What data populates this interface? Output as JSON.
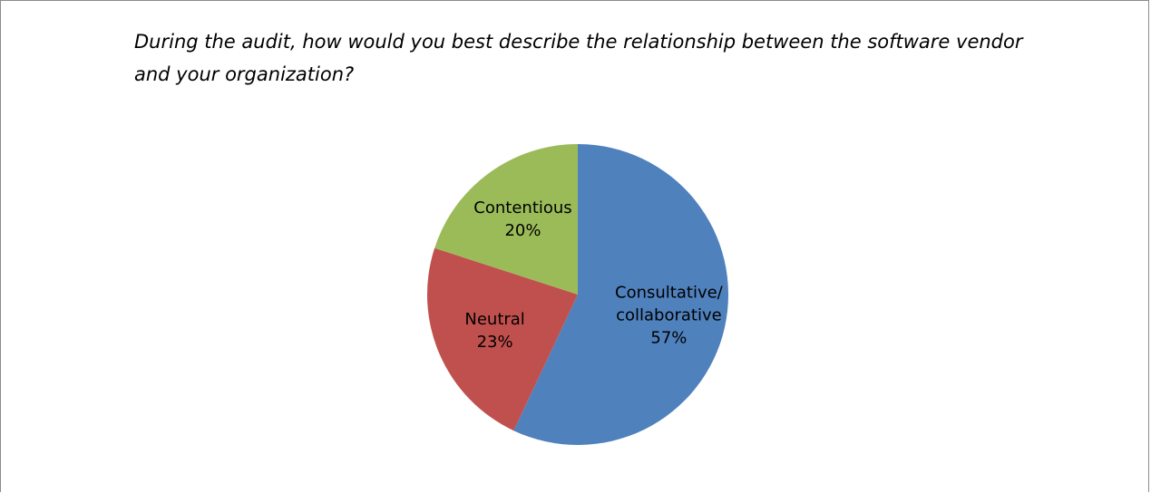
{
  "chart_data": {
    "type": "pie",
    "title": "During the audit, how would you best describe the relationship between the software vendor and your organization?",
    "categories": [
      "Consultative/ collaborative",
      "Neutral",
      "Contentious"
    ],
    "values": [
      57,
      23,
      20
    ],
    "value_labels": [
      "57%",
      "23%",
      "20%"
    ],
    "label_lines": [
      [
        "Consultative/",
        "collaborative",
        "57%"
      ],
      [
        "Neutral",
        "23%"
      ],
      [
        "Contentious",
        "20%"
      ]
    ],
    "colors": [
      "#4f81bd",
      "#c0504d",
      "#9bbb59"
    ],
    "legend": "none",
    "start_angle_deg": 0,
    "direction": "clockwise"
  }
}
